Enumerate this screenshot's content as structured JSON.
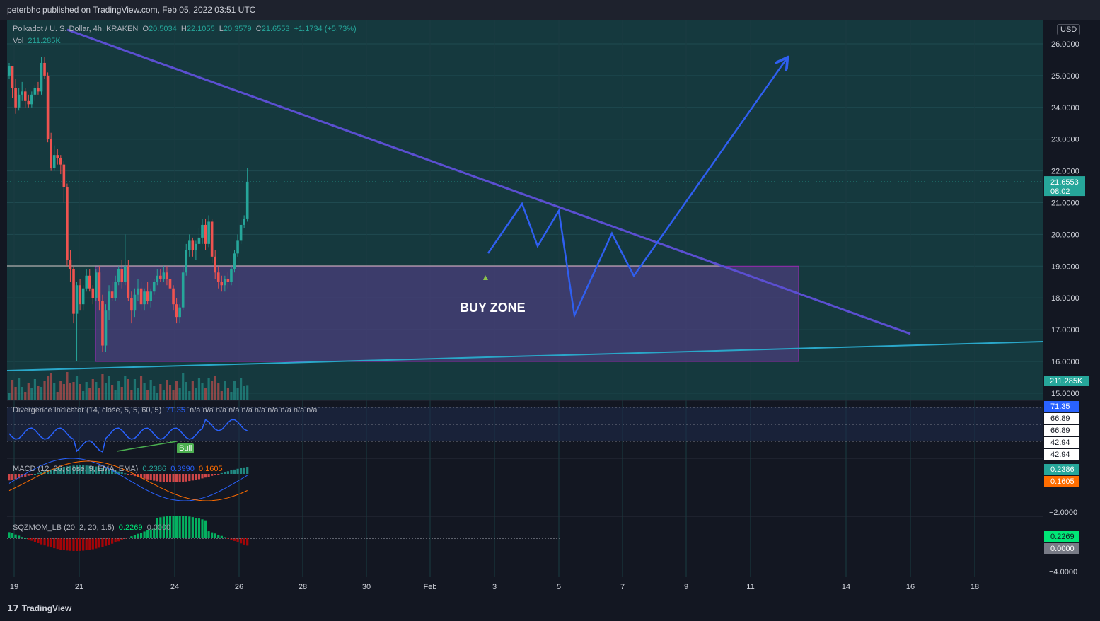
{
  "header": {
    "published": "peterbhc published on TradingView.com, Feb 05, 2022 03:51 UTC"
  },
  "footer": {
    "brand": "TradingView",
    "logo_glyph": "17"
  },
  "legend": {
    "symbol": "Polkadot / U. S. Dollar, 4h, KRAKEN",
    "o_label": "O",
    "o": "20.5034",
    "h_label": "H",
    "h": "22.1055",
    "l_label": "L",
    "l": "20.3579",
    "c_label": "C",
    "c": "21.6553",
    "change": "+1.1734 (+5.73%)",
    "vol_label": "Vol",
    "vol": "211.285K"
  },
  "currency_badge": "USD",
  "annotations": {
    "buy_zone": "BUY ZONE",
    "bull": "Bull"
  },
  "indicators": {
    "div": {
      "label": "Divergence Indicator (14, close, 5, 5, 60, 5)",
      "value": "71.35",
      "na": "n/a  n/a  n/a  n/a  n/a  n/a  n/a  n/a  n/a  n/a"
    },
    "macd": {
      "label": "MACD (12, 26, close, 9, EMA, EMA)",
      "v1": "0.2386",
      "v2": "0.3990",
      "v3": "0.1605"
    },
    "sqz": {
      "label": "SQZMOM_LB (20, 2, 20, 1.5)",
      "v1": "0.2269",
      "v2": "0.0000"
    }
  },
  "axis": {
    "price_ticks": [
      "26.0000",
      "25.0000",
      "24.0000",
      "23.0000",
      "22.0000",
      "21.0000",
      "20.0000",
      "19.0000",
      "18.0000",
      "17.0000",
      "16.0000",
      "15.0000"
    ],
    "last_price": "21.6553",
    "countdown": "08:02",
    "vol_badge": "211.285K",
    "div_badges": [
      "71.35",
      "66.89",
      "66.89",
      "42.94",
      "42.94"
    ],
    "macd_badges": [
      "0.2386",
      "0.1605"
    ],
    "macd_tick": "−2.0000",
    "sqz_badges": [
      "0.2269",
      "0.0000"
    ],
    "sqz_tick": "−4.0000",
    "x_ticks": [
      "19",
      "21",
      "24",
      "26",
      "28",
      "30",
      "Feb",
      "3",
      "5",
      "7",
      "9",
      "11",
      "14",
      "16",
      "18"
    ]
  },
  "colors": {
    "up": "#26a69a",
    "down": "#ef5350",
    "bg": "#131722",
    "trendline": "#5b4fd1",
    "projection": "#2f5ff0",
    "buy_zone_fill": "#5c3f8f",
    "support": "#2aa7c9",
    "macd": "#2962ff",
    "signal": "#ff6d00"
  },
  "chart_data": {
    "type": "candlestick",
    "symbol": "DOTUSD",
    "timeframe": "4h",
    "ylim": [
      15.0,
      26.4
    ],
    "x_dates": [
      "Jan 19",
      "Jan 21",
      "Jan 24",
      "Jan 26",
      "Jan 28",
      "Jan 30",
      "Feb",
      "Feb 3",
      "Feb 5",
      "Feb 7",
      "Feb 9",
      "Feb 11",
      "Feb 14",
      "Feb 16",
      "Feb 18"
    ],
    "candles": [
      {
        "o": 25.0,
        "h": 25.4,
        "l": 24.9,
        "c": 25.3
      },
      {
        "o": 25.3,
        "h": 25.3,
        "l": 24.3,
        "c": 24.6
      },
      {
        "o": 24.6,
        "h": 24.9,
        "l": 23.8,
        "c": 24.0
      },
      {
        "o": 24.0,
        "h": 24.6,
        "l": 23.9,
        "c": 24.4
      },
      {
        "o": 24.4,
        "h": 24.8,
        "l": 24.2,
        "c": 24.5
      },
      {
        "o": 24.5,
        "h": 24.6,
        "l": 24.0,
        "c": 24.2
      },
      {
        "o": 24.2,
        "h": 24.4,
        "l": 24.0,
        "c": 24.1
      },
      {
        "o": 24.1,
        "h": 24.5,
        "l": 24.0,
        "c": 24.4
      },
      {
        "o": 24.4,
        "h": 24.7,
        "l": 24.2,
        "c": 24.6
      },
      {
        "o": 24.6,
        "h": 24.8,
        "l": 24.4,
        "c": 24.5
      },
      {
        "o": 24.5,
        "h": 25.6,
        "l": 24.4,
        "c": 25.4
      },
      {
        "o": 25.4,
        "h": 25.6,
        "l": 24.9,
        "c": 25.0
      },
      {
        "o": 25.0,
        "h": 25.1,
        "l": 22.9,
        "c": 23.0
      },
      {
        "o": 23.0,
        "h": 23.2,
        "l": 22.0,
        "c": 22.1
      },
      {
        "o": 22.1,
        "h": 22.8,
        "l": 22.0,
        "c": 22.5
      },
      {
        "o": 22.5,
        "h": 22.7,
        "l": 22.2,
        "c": 22.4
      },
      {
        "o": 22.4,
        "h": 22.5,
        "l": 21.9,
        "c": 22.2
      },
      {
        "o": 22.2,
        "h": 22.3,
        "l": 21.0,
        "c": 21.5
      },
      {
        "o": 21.5,
        "h": 21.6,
        "l": 19.0,
        "c": 19.2
      },
      {
        "o": 19.2,
        "h": 19.5,
        "l": 18.5,
        "c": 18.9
      },
      {
        "o": 18.9,
        "h": 19.0,
        "l": 17.2,
        "c": 17.5
      },
      {
        "o": 17.5,
        "h": 18.5,
        "l": 16.0,
        "c": 18.4
      },
      {
        "o": 18.4,
        "h": 18.6,
        "l": 17.6,
        "c": 17.8
      },
      {
        "o": 17.8,
        "h": 18.4,
        "l": 17.6,
        "c": 18.3
      },
      {
        "o": 18.3,
        "h": 18.9,
        "l": 18.2,
        "c": 18.7
      },
      {
        "o": 18.7,
        "h": 18.9,
        "l": 18.2,
        "c": 18.3
      },
      {
        "o": 18.3,
        "h": 18.4,
        "l": 17.8,
        "c": 18.0
      },
      {
        "o": 18.0,
        "h": 18.9,
        "l": 17.9,
        "c": 18.8
      },
      {
        "o": 18.8,
        "h": 19.0,
        "l": 17.6,
        "c": 17.9
      },
      {
        "o": 17.9,
        "h": 18.1,
        "l": 16.3,
        "c": 16.5
      },
      {
        "o": 16.5,
        "h": 17.8,
        "l": 16.3,
        "c": 17.6
      },
      {
        "o": 17.6,
        "h": 18.4,
        "l": 17.3,
        "c": 18.2
      },
      {
        "o": 18.2,
        "h": 18.5,
        "l": 17.9,
        "c": 18.0
      },
      {
        "o": 18.0,
        "h": 18.7,
        "l": 17.9,
        "c": 18.5
      },
      {
        "o": 18.5,
        "h": 19.0,
        "l": 18.4,
        "c": 18.9
      },
      {
        "o": 18.9,
        "h": 19.2,
        "l": 18.3,
        "c": 18.5
      },
      {
        "o": 18.5,
        "h": 20.0,
        "l": 18.4,
        "c": 19.0
      },
      {
        "o": 19.0,
        "h": 19.2,
        "l": 17.9,
        "c": 18.0
      },
      {
        "o": 18.0,
        "h": 18.2,
        "l": 17.2,
        "c": 17.6
      },
      {
        "o": 17.6,
        "h": 18.3,
        "l": 17.4,
        "c": 18.1
      },
      {
        "o": 18.1,
        "h": 18.6,
        "l": 17.9,
        "c": 18.3
      },
      {
        "o": 18.3,
        "h": 18.5,
        "l": 17.6,
        "c": 17.8
      },
      {
        "o": 17.8,
        "h": 18.3,
        "l": 17.6,
        "c": 18.2
      },
      {
        "o": 18.2,
        "h": 18.5,
        "l": 17.8,
        "c": 17.9
      },
      {
        "o": 17.9,
        "h": 18.3,
        "l": 17.7,
        "c": 18.2
      },
      {
        "o": 18.2,
        "h": 18.6,
        "l": 18.1,
        "c": 18.5
      },
      {
        "o": 18.5,
        "h": 18.9,
        "l": 18.4,
        "c": 18.7
      },
      {
        "o": 18.7,
        "h": 18.9,
        "l": 18.5,
        "c": 18.6
      },
      {
        "o": 18.6,
        "h": 19.0,
        "l": 18.5,
        "c": 18.8
      },
      {
        "o": 18.8,
        "h": 19.0,
        "l": 18.4,
        "c": 18.6
      },
      {
        "o": 18.6,
        "h": 18.8,
        "l": 18.1,
        "c": 18.3
      },
      {
        "o": 18.3,
        "h": 18.4,
        "l": 17.6,
        "c": 17.8
      },
      {
        "o": 17.8,
        "h": 18.0,
        "l": 17.2,
        "c": 17.4
      },
      {
        "o": 17.4,
        "h": 17.8,
        "l": 17.2,
        "c": 17.7
      },
      {
        "o": 17.7,
        "h": 19.0,
        "l": 17.6,
        "c": 18.8
      },
      {
        "o": 18.8,
        "h": 19.7,
        "l": 18.7,
        "c": 19.5
      },
      {
        "o": 19.5,
        "h": 20.0,
        "l": 19.3,
        "c": 19.8
      },
      {
        "o": 19.8,
        "h": 19.9,
        "l": 19.3,
        "c": 19.5
      },
      {
        "o": 19.5,
        "h": 19.8,
        "l": 19.2,
        "c": 19.7
      },
      {
        "o": 19.7,
        "h": 20.2,
        "l": 19.5,
        "c": 19.9
      },
      {
        "o": 19.9,
        "h": 20.5,
        "l": 19.7,
        "c": 20.3
      },
      {
        "o": 20.3,
        "h": 20.5,
        "l": 19.5,
        "c": 19.7
      },
      {
        "o": 19.7,
        "h": 20.6,
        "l": 19.6,
        "c": 20.4
      },
      {
        "o": 20.4,
        "h": 20.5,
        "l": 19.1,
        "c": 19.3
      },
      {
        "o": 19.3,
        "h": 19.5,
        "l": 18.6,
        "c": 18.8
      },
      {
        "o": 18.8,
        "h": 19.0,
        "l": 18.3,
        "c": 18.5
      },
      {
        "o": 18.5,
        "h": 18.7,
        "l": 18.2,
        "c": 18.4
      },
      {
        "o": 18.4,
        "h": 18.7,
        "l": 18.2,
        "c": 18.6
      },
      {
        "o": 18.6,
        "h": 18.8,
        "l": 18.3,
        "c": 18.5
      },
      {
        "o": 18.5,
        "h": 19.0,
        "l": 18.4,
        "c": 18.9
      },
      {
        "o": 18.9,
        "h": 19.5,
        "l": 18.8,
        "c": 19.4
      },
      {
        "o": 19.4,
        "h": 20.0,
        "l": 19.3,
        "c": 19.8
      },
      {
        "o": 19.8,
        "h": 20.5,
        "l": 19.7,
        "c": 20.3
      },
      {
        "o": 20.3,
        "h": 20.6,
        "l": 20.2,
        "c": 20.5
      },
      {
        "o": 20.5,
        "h": 22.1,
        "l": 20.4,
        "c": 21.66
      }
    ]
  }
}
